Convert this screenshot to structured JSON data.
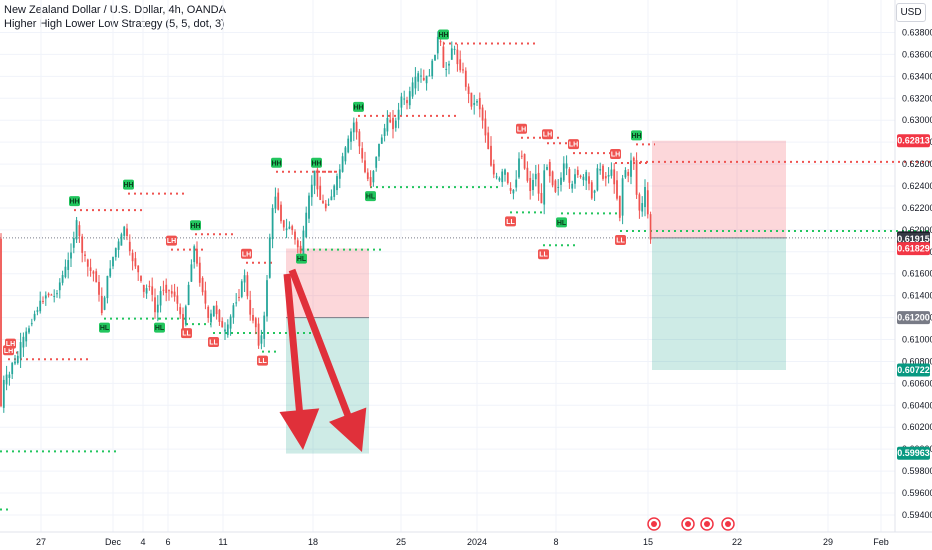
{
  "header": {
    "title": "New Zealand Dollar / U.S. Dollar, 4h, OANDA",
    "indicator": "Higher High Lower Low Strategy (5, 5, dot, 3)"
  },
  "currency_button": "USD",
  "colors": {
    "up": "#26a69a",
    "down": "#ef5350",
    "grid": "#f0f3fa",
    "pivot_high_line": "#ef5350",
    "pivot_low_line": "#22c55e",
    "pivot_green_bg": "#22c55e",
    "pivot_red_bg": "#ef5350",
    "stop_zone": "rgba(242,54,69,0.2)",
    "target_zone": "rgba(8,153,129,0.2)",
    "arrow": "#e0303a"
  },
  "chart_data": {
    "type": "candlestick",
    "symbol": "NZDUSD",
    "timeframe": "4h",
    "ylim": [
      0.593,
      0.639
    ],
    "y_ticks": [
      "0.63800",
      "0.63600",
      "0.63400",
      "0.63200",
      "0.63000",
      "0.62800",
      "0.62600",
      "0.62400",
      "0.62200",
      "0.62000",
      "0.61800",
      "0.61600",
      "0.61400",
      "0.61200",
      "0.61000",
      "0.60800",
      "0.60600",
      "0.60400",
      "0.60200",
      "0.60000",
      "0.59800",
      "0.59600",
      "0.59400"
    ],
    "x_ticks": [
      "27",
      "Dec",
      "4",
      "6",
      "11",
      "18",
      "25",
      "2024",
      "8",
      "15",
      "22",
      "29",
      "Feb"
    ],
    "price_path": [
      [
        0,
        0.602
      ],
      [
        6,
        0.6068
      ],
      [
        10,
        0.6063
      ],
      [
        13,
        0.608
      ],
      [
        17,
        0.6078
      ],
      [
        22,
        0.6095
      ],
      [
        29,
        0.6108
      ],
      [
        35,
        0.6122
      ],
      [
        41,
        0.6132
      ],
      [
        48,
        0.6142
      ],
      [
        56,
        0.6139
      ],
      [
        62,
        0.6154
      ],
      [
        70,
        0.6172
      ],
      [
        78,
        0.6206
      ],
      [
        83,
        0.6182
      ],
      [
        90,
        0.6164
      ],
      [
        97,
        0.6158
      ],
      [
        103,
        0.6124
      ],
      [
        110,
        0.6162
      ],
      [
        117,
        0.6183
      ],
      [
        122,
        0.6191
      ],
      [
        126,
        0.6205
      ],
      [
        131,
        0.6178
      ],
      [
        138,
        0.6166
      ],
      [
        145,
        0.6142
      ],
      [
        151,
        0.6151
      ],
      [
        157,
        0.6122
      ],
      [
        163,
        0.6148
      ],
      [
        170,
        0.6144
      ],
      [
        177,
        0.614
      ],
      [
        184,
        0.611
      ],
      [
        190,
        0.615
      ],
      [
        195,
        0.6188
      ],
      [
        200,
        0.6158
      ],
      [
        205,
        0.6142
      ],
      [
        210,
        0.6115
      ],
      [
        215,
        0.613
      ],
      [
        220,
        0.6121
      ],
      [
        225,
        0.6105
      ],
      [
        230,
        0.6112
      ],
      [
        235,
        0.6132
      ],
      [
        240,
        0.614
      ],
      [
        246,
        0.616
      ],
      [
        251,
        0.6121
      ],
      [
        256,
        0.6118
      ],
      [
        261,
        0.6092
      ],
      [
        266,
        0.6122
      ],
      [
        271,
        0.6192
      ],
      [
        276,
        0.6235
      ],
      [
        281,
        0.6215
      ],
      [
        286,
        0.6198
      ],
      [
        292,
        0.6205
      ],
      [
        297,
        0.6188
      ],
      [
        302,
        0.618
      ],
      [
        308,
        0.6215
      ],
      [
        312,
        0.6238
      ],
      [
        316,
        0.6252
      ],
      [
        322,
        0.6226
      ],
      [
        327,
        0.622
      ],
      [
        333,
        0.6232
      ],
      [
        339,
        0.6248
      ],
      [
        345,
        0.6268
      ],
      [
        350,
        0.6282
      ],
      [
        356,
        0.63
      ],
      [
        362,
        0.627
      ],
      [
        367,
        0.625
      ],
      [
        372,
        0.6242
      ],
      [
        378,
        0.627
      ],
      [
        384,
        0.6288
      ],
      [
        390,
        0.6302
      ],
      [
        396,
        0.6292
      ],
      [
        402,
        0.6322
      ],
      [
        408,
        0.6315
      ],
      [
        414,
        0.6332
      ],
      [
        420,
        0.6342
      ],
      [
        426,
        0.6335
      ],
      [
        432,
        0.6345
      ],
      [
        437,
        0.6365
      ],
      [
        441,
        0.6382
      ],
      [
        444,
        0.6345
      ],
      [
        449,
        0.6348
      ],
      [
        454,
        0.637
      ],
      [
        459,
        0.6352
      ],
      [
        464,
        0.6345
      ],
      [
        469,
        0.6325
      ],
      [
        474,
        0.6312
      ],
      [
        479,
        0.632
      ],
      [
        484,
        0.63
      ],
      [
        489,
        0.6278
      ],
      [
        494,
        0.6252
      ],
      [
        500,
        0.6244
      ],
      [
        506,
        0.6256
      ],
      [
        511,
        0.6232
      ],
      [
        516,
        0.6238
      ],
      [
        522,
        0.6275
      ],
      [
        527,
        0.6251
      ],
      [
        532,
        0.6236
      ],
      [
        537,
        0.6254
      ],
      [
        542,
        0.6218
      ],
      [
        547,
        0.6265
      ],
      [
        552,
        0.6248
      ],
      [
        557,
        0.6236
      ],
      [
        562,
        0.6246
      ],
      [
        567,
        0.6265
      ],
      [
        572,
        0.6232
      ],
      [
        577,
        0.6256
      ],
      [
        582,
        0.6246
      ],
      [
        588,
        0.625
      ],
      [
        594,
        0.6228
      ],
      [
        600,
        0.626
      ],
      [
        606,
        0.6245
      ],
      [
        612,
        0.6255
      ],
      [
        617,
        0.624
      ],
      [
        621,
        0.621
      ],
      [
        625,
        0.626
      ],
      [
        630,
        0.6246
      ],
      [
        634,
        0.6277
      ],
      [
        638,
        0.6232
      ],
      [
        642,
        0.6212
      ],
      [
        646,
        0.624
      ],
      [
        650,
        0.6207
      ],
      [
        652,
        0.6192
      ]
    ],
    "pivots": [
      {
        "label": "HH",
        "x": 74,
        "price": 0.6218,
        "side": "high",
        "color": "green",
        "line_to": 143
      },
      {
        "label": "HH",
        "x": 128,
        "price": 0.6233,
        "side": "high",
        "color": "green",
        "line_to": 186
      },
      {
        "label": "HL",
        "x": 104,
        "price": 0.6119,
        "side": "low",
        "color": "green",
        "line_to": 163
      },
      {
        "label": "HL",
        "x": 159,
        "price": 0.6119,
        "side": "low",
        "color": "green",
        "line_to": 190
      },
      {
        "label": "LH",
        "x": 171,
        "price": 0.6182,
        "side": "high",
        "color": "red",
        "line_to": 206
      },
      {
        "label": "HH",
        "x": 195,
        "price": 0.6196,
        "side": "high",
        "color": "green",
        "line_to": 236
      },
      {
        "label": "LH",
        "x": 246,
        "price": 0.617,
        "side": "high",
        "color": "red",
        "line_to": 276
      },
      {
        "label": "LL",
        "x": 186,
        "price": 0.6114,
        "side": "low",
        "color": "red",
        "line_to": 211
      },
      {
        "label": "LL",
        "x": 213,
        "price": 0.6106,
        "side": "low",
        "color": "red",
        "line_to": 314
      },
      {
        "label": "LL",
        "x": 262,
        "price": 0.6089,
        "side": "low",
        "color": "red",
        "line_to": 280
      },
      {
        "label": "HH",
        "x": 276,
        "price": 0.6253,
        "side": "high",
        "color": "green",
        "line_to": 337
      },
      {
        "label": "HH",
        "x": 316,
        "price": 0.6253,
        "side": "high",
        "color": "green",
        "line_to": 340
      },
      {
        "label": "HL",
        "x": 301,
        "price": 0.6182,
        "side": "low",
        "color": "green",
        "line_to": 385
      },
      {
        "label": "HH",
        "x": 358,
        "price": 0.6304,
        "side": "high",
        "color": "green",
        "line_to": 459
      },
      {
        "label": "HL",
        "x": 370,
        "price": 0.6239,
        "side": "low",
        "color": "green",
        "line_to": 500
      },
      {
        "label": "HH",
        "x": 443,
        "price": 0.637,
        "side": "high",
        "color": "green",
        "line_to": 535
      },
      {
        "label": "LH",
        "x": 521,
        "price": 0.6284,
        "side": "high",
        "color": "red",
        "line_to": 560
      },
      {
        "label": "LH",
        "x": 547,
        "price": 0.6279,
        "side": "high",
        "color": "red",
        "line_to": 572
      },
      {
        "label": "LH",
        "x": 573,
        "price": 0.627,
        "side": "high",
        "color": "red",
        "line_to": 612
      },
      {
        "label": "LH",
        "x": 615,
        "price": 0.6261,
        "side": "high",
        "color": "red",
        "line_to": 650
      },
      {
        "label": "HH",
        "x": 636,
        "price": 0.6278,
        "side": "high",
        "color": "green",
        "line_to": 655
      },
      {
        "label": "LL",
        "x": 510,
        "price": 0.6216,
        "side": "low",
        "color": "red",
        "line_to": 542
      },
      {
        "label": "HL",
        "x": 561,
        "price": 0.6215,
        "side": "low",
        "color": "green",
        "line_to": 618
      },
      {
        "label": "LL",
        "x": 543,
        "price": 0.6186,
        "side": "low",
        "color": "red",
        "line_to": 576
      },
      {
        "label": "LL",
        "x": 620,
        "price": 0.6199,
        "side": "low",
        "color": "red",
        "line_to": 932
      },
      {
        "label": "LH",
        "x": 8,
        "price": 0.6082,
        "side": "high",
        "color": "red",
        "line_to": 88
      },
      {
        "label": "LH",
        "x": 10,
        "price": 0.6088,
        "side": "high",
        "color": "red",
        "line_to": 18
      }
    ],
    "extra_lines": [
      {
        "color": "green",
        "price": 0.5998,
        "x0": 0,
        "x1": 118
      },
      {
        "color": "green",
        "price": 0.5945,
        "x0": 0,
        "x1": 10
      },
      {
        "color": "red",
        "price": 0.6262,
        "x0": 640,
        "x1": 932
      }
    ],
    "positions": [
      {
        "x0": 286,
        "x1": 369,
        "entry": 0.612,
        "stop": 0.6183,
        "target": 0.5996
      },
      {
        "x0": 652,
        "x1": 786,
        "entry": 0.61927,
        "stop": 0.62813,
        "target": 0.60722
      }
    ],
    "price_tags": [
      {
        "value": "0.62813",
        "price": 0.62813,
        "bg": "#f23645"
      },
      {
        "value": "0.61927",
        "price": 0.61927,
        "bg": "#131722"
      },
      {
        "value": "0.61915",
        "price": 0.61915,
        "bg": "#363a45"
      },
      {
        "value": "0.61829",
        "price": 0.61829,
        "bg": "#f23645"
      },
      {
        "value": "0.61200",
        "price": 0.612,
        "bg": "#787b86"
      },
      {
        "value": "0.60722",
        "price": 0.60722,
        "bg": "#089981"
      },
      {
        "value": "0.59963",
        "price": 0.59963,
        "bg": "#089981"
      }
    ],
    "current_price": 0.61927
  }
}
